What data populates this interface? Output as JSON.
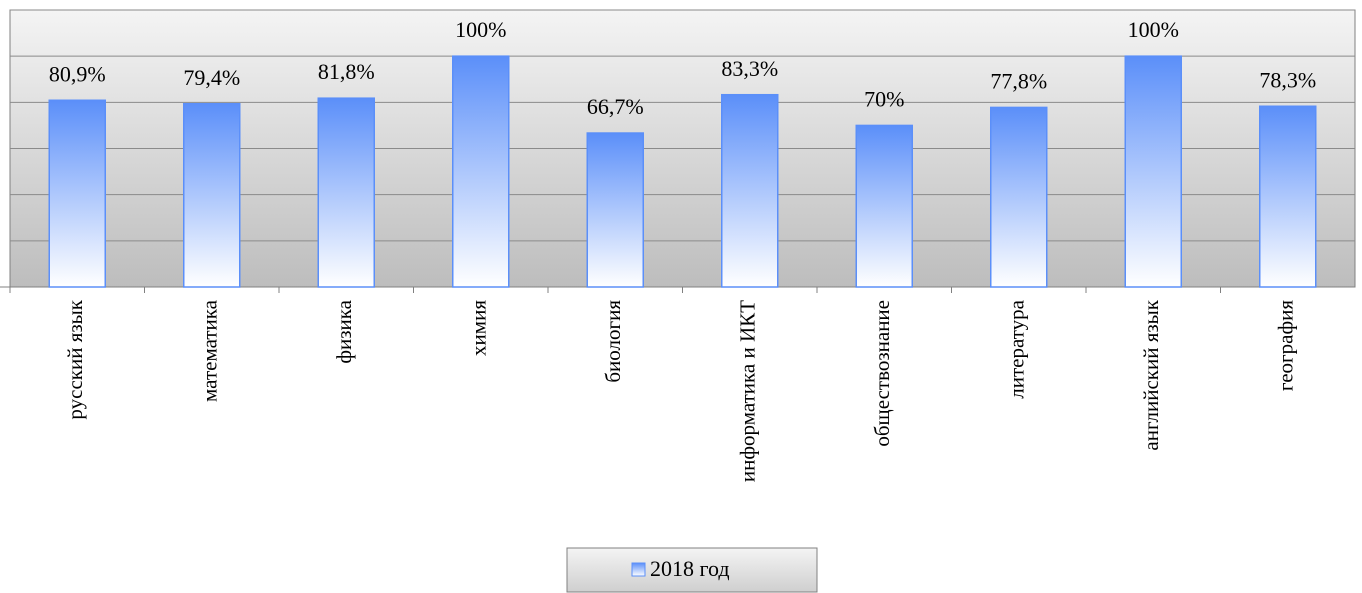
{
  "chart_data": {
    "type": "bar",
    "categories": [
      "русский язык",
      "математика",
      "физика",
      "химия",
      "биология",
      "информатика и ИКТ",
      "обществознание",
      "литература",
      "английский язык",
      "география"
    ],
    "series": [
      {
        "name": "2018 год",
        "color": "#5b8ff9",
        "values": [
          80.9,
          79.4,
          81.8,
          100,
          66.7,
          83.3,
          70,
          77.8,
          100,
          78.3
        ],
        "value_labels": [
          "80,9%",
          "79,4%",
          "81,8%",
          "100%",
          "66,7%",
          "83,3%",
          "70%",
          "77,8%",
          "100%",
          "78,3%"
        ]
      }
    ],
    "ylim": [
      0,
      120
    ],
    "yticks": [
      0,
      20,
      40,
      60,
      80,
      100,
      120
    ],
    "grid": true,
    "legend": "bottom"
  }
}
